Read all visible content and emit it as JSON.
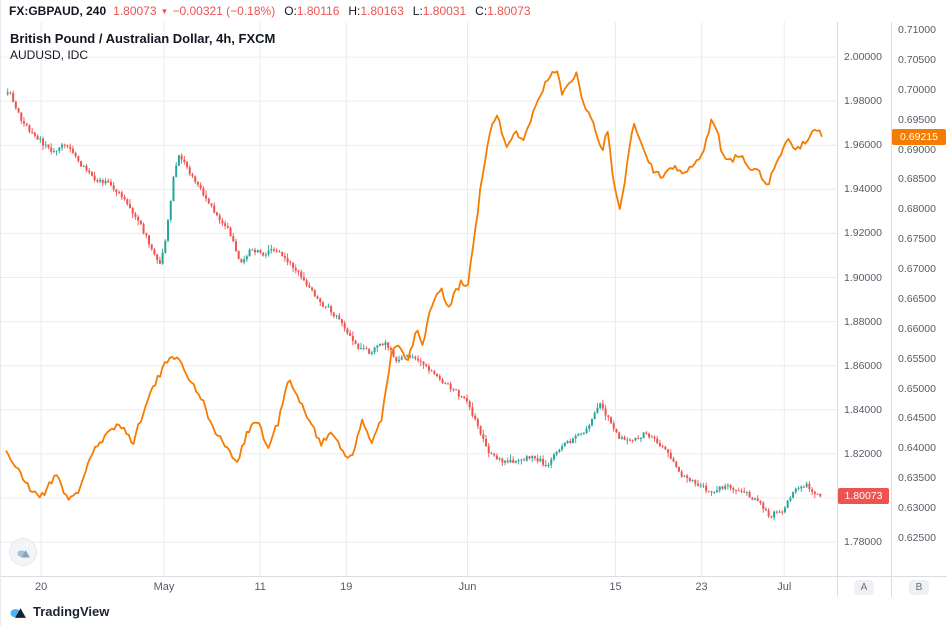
{
  "header": {
    "symbol": "FX:GBPAUD, 240",
    "last_price": "1.80073",
    "arrow": "▼",
    "change": "−0.00321 (−0.18%)",
    "ohlc": [
      {
        "label": "O:",
        "value": "1.80116"
      },
      {
        "label": "H:",
        "value": "1.80163"
      },
      {
        "label": "L:",
        "value": "1.80031"
      },
      {
        "label": "C:",
        "value": "1.80073"
      }
    ]
  },
  "legend": {
    "line1": "British Pound / Australian Dollar, 4h, FXCM",
    "line2": "AUDUSD, IDC"
  },
  "branding": {
    "name": "TradingView"
  },
  "axis_buttons": {
    "a": "A",
    "b": "B"
  },
  "icons": {
    "watermark": "tradingview-cloud-mountain",
    "logo": "tradingview-cloud-mountain"
  },
  "colors": {
    "up": "#26a69a",
    "down": "#ef5350",
    "line": "#f57c00",
    "grid": "#eaecf0",
    "axis_text": "#555b66",
    "badge_a": "#ef5350",
    "badge_b": "#f57c00"
  },
  "chart_data": {
    "type": "candlestick+line",
    "title": "British Pound / Australian Dollar, 4h, FXCM with AUDUSD, IDC overlay",
    "axisA": {
      "name": "GBPAUD",
      "min": 1.7646,
      "max": 2.0159,
      "decimals": 5,
      "last": 1.80073,
      "ticks": [
        2.0,
        1.98,
        1.96,
        1.94,
        1.92,
        1.9,
        1.88,
        1.86,
        1.84,
        1.82,
        1.8,
        1.78
      ]
    },
    "axisB": {
      "name": "AUDUSD",
      "min": 0.61864,
      "max": 0.71134,
      "decimals": 5,
      "last": 0.69215,
      "ticks": [
        0.71,
        0.705,
        0.7,
        0.695,
        0.69,
        0.685,
        0.68,
        0.675,
        0.67,
        0.665,
        0.66,
        0.655,
        0.65,
        0.645,
        0.64,
        0.635,
        0.63,
        0.625
      ]
    },
    "time_axis": {
      "labels": [
        {
          "t": 0.048,
          "text": "20"
        },
        {
          "t": 0.195,
          "text": "May"
        },
        {
          "t": 0.31,
          "text": "11"
        },
        {
          "t": 0.413,
          "text": "19"
        },
        {
          "t": 0.558,
          "text": "Jun"
        },
        {
          "t": 0.735,
          "text": "15"
        },
        {
          "t": 0.838,
          "text": "23"
        },
        {
          "t": 0.937,
          "text": "Jul"
        }
      ]
    },
    "series": [
      {
        "name": "GBPAUD",
        "type": "candlestick",
        "axis": "A",
        "color_up": "#26a69a",
        "color_down": "#ef5350",
        "points": [
          [
            0.01,
            1.985
          ],
          [
            0.024,
            1.971
          ],
          [
            0.042,
            1.964
          ],
          [
            0.06,
            1.957
          ],
          [
            0.078,
            1.96
          ],
          [
            0.096,
            1.951
          ],
          [
            0.114,
            1.944
          ],
          [
            0.132,
            1.942
          ],
          [
            0.15,
            1.934
          ],
          [
            0.168,
            1.923
          ],
          [
            0.182,
            1.912
          ],
          [
            0.189,
            1.905
          ],
          [
            0.198,
            1.92
          ],
          [
            0.206,
            1.945
          ],
          [
            0.213,
            1.956
          ],
          [
            0.228,
            1.946
          ],
          [
            0.246,
            1.936
          ],
          [
            0.261,
            1.926
          ],
          [
            0.273,
            1.921
          ],
          [
            0.287,
            1.906
          ],
          [
            0.299,
            1.913
          ],
          [
            0.314,
            1.911
          ],
          [
            0.329,
            1.913
          ],
          [
            0.345,
            1.906
          ],
          [
            0.357,
            1.902
          ],
          [
            0.369,
            1.895
          ],
          [
            0.381,
            1.889
          ],
          [
            0.395,
            1.885
          ],
          [
            0.413,
            1.876
          ],
          [
            0.428,
            1.868
          ],
          [
            0.443,
            1.866
          ],
          [
            0.459,
            1.871
          ],
          [
            0.473,
            1.862
          ],
          [
            0.491,
            1.865
          ],
          [
            0.509,
            1.859
          ],
          [
            0.527,
            1.853
          ],
          [
            0.545,
            1.848
          ],
          [
            0.558,
            1.843
          ],
          [
            0.57,
            1.833
          ],
          [
            0.583,
            1.821
          ],
          [
            0.599,
            1.817
          ],
          [
            0.617,
            1.816
          ],
          [
            0.635,
            1.819
          ],
          [
            0.653,
            1.815
          ],
          [
            0.667,
            1.822
          ],
          [
            0.685,
            1.827
          ],
          [
            0.701,
            1.831
          ],
          [
            0.716,
            1.843
          ],
          [
            0.728,
            1.835
          ],
          [
            0.739,
            1.828
          ],
          [
            0.754,
            1.826
          ],
          [
            0.77,
            1.829
          ],
          [
            0.784,
            1.826
          ],
          [
            0.799,
            1.82
          ],
          [
            0.814,
            1.81
          ],
          [
            0.832,
            1.806
          ],
          [
            0.85,
            1.803
          ],
          [
            0.868,
            1.806
          ],
          [
            0.886,
            1.803
          ],
          [
            0.904,
            1.799
          ],
          [
            0.92,
            1.792
          ],
          [
            0.934,
            1.794
          ],
          [
            0.95,
            1.803
          ],
          [
            0.964,
            1.806
          ],
          [
            0.976,
            1.801
          ],
          [
            0.98,
            1.80073
          ]
        ]
      },
      {
        "name": "AUDUSD",
        "type": "line",
        "axis": "B",
        "color": "#f57c00",
        "points": [
          [
            0.006,
            0.6397
          ],
          [
            0.022,
            0.6358
          ],
          [
            0.036,
            0.633
          ],
          [
            0.05,
            0.632
          ],
          [
            0.066,
            0.636
          ],
          [
            0.081,
            0.631
          ],
          [
            0.093,
            0.633
          ],
          [
            0.108,
            0.639
          ],
          [
            0.126,
            0.642
          ],
          [
            0.141,
            0.6445
          ],
          [
            0.158,
            0.6408
          ],
          [
            0.174,
            0.648
          ],
          [
            0.189,
            0.652
          ],
          [
            0.204,
            0.656
          ],
          [
            0.216,
            0.654
          ],
          [
            0.23,
            0.6505
          ],
          [
            0.242,
            0.648
          ],
          [
            0.254,
            0.643
          ],
          [
            0.266,
            0.6412
          ],
          [
            0.281,
            0.6372
          ],
          [
            0.295,
            0.643
          ],
          [
            0.307,
            0.6448
          ],
          [
            0.319,
            0.6398
          ],
          [
            0.331,
            0.6442
          ],
          [
            0.344,
            0.6515
          ],
          [
            0.356,
            0.648
          ],
          [
            0.371,
            0.6445
          ],
          [
            0.383,
            0.6405
          ],
          [
            0.396,
            0.643
          ],
          [
            0.408,
            0.6398
          ],
          [
            0.42,
            0.638
          ],
          [
            0.432,
            0.6448
          ],
          [
            0.444,
            0.641
          ],
          [
            0.456,
            0.6455
          ],
          [
            0.468,
            0.6565
          ],
          [
            0.479,
            0.657
          ],
          [
            0.486,
            0.654
          ],
          [
            0.497,
            0.66
          ],
          [
            0.504,
            0.657
          ],
          [
            0.515,
            0.664
          ],
          [
            0.527,
            0.6665
          ],
          [
            0.534,
            0.663
          ],
          [
            0.541,
            0.6655
          ],
          [
            0.552,
            0.668
          ],
          [
            0.558,
            0.6665
          ],
          [
            0.564,
            0.673
          ],
          [
            0.575,
            0.685
          ],
          [
            0.587,
            0.694
          ],
          [
            0.594,
            0.6958
          ],
          [
            0.605,
            0.69
          ],
          [
            0.616,
            0.693
          ],
          [
            0.624,
            0.6916
          ],
          [
            0.636,
            0.6958
          ],
          [
            0.647,
            0.7
          ],
          [
            0.659,
            0.7025
          ],
          [
            0.666,
            0.7033
          ],
          [
            0.672,
            0.699
          ],
          [
            0.678,
            0.7008
          ],
          [
            0.689,
            0.7033
          ],
          [
            0.696,
            0.698
          ],
          [
            0.708,
            0.6949
          ],
          [
            0.719,
            0.69
          ],
          [
            0.726,
            0.693
          ],
          [
            0.733,
            0.684
          ],
          [
            0.74,
            0.68
          ],
          [
            0.75,
            0.688
          ],
          [
            0.756,
            0.6949
          ],
          [
            0.768,
            0.69
          ],
          [
            0.78,
            0.6866
          ],
          [
            0.792,
            0.685
          ],
          [
            0.804,
            0.6874
          ],
          [
            0.816,
            0.6857
          ],
          [
            0.828,
            0.6874
          ],
          [
            0.84,
            0.69
          ],
          [
            0.85,
            0.6949
          ],
          [
            0.857,
            0.693
          ],
          [
            0.863,
            0.689
          ],
          [
            0.875,
            0.6883
          ],
          [
            0.887,
            0.689
          ],
          [
            0.893,
            0.6874
          ],
          [
            0.905,
            0.6866
          ],
          [
            0.917,
            0.684
          ],
          [
            0.929,
            0.6883
          ],
          [
            0.941,
            0.6916
          ],
          [
            0.953,
            0.69
          ],
          [
            0.965,
            0.692
          ],
          [
            0.976,
            0.6935
          ],
          [
            0.982,
            0.69215
          ]
        ]
      }
    ]
  }
}
